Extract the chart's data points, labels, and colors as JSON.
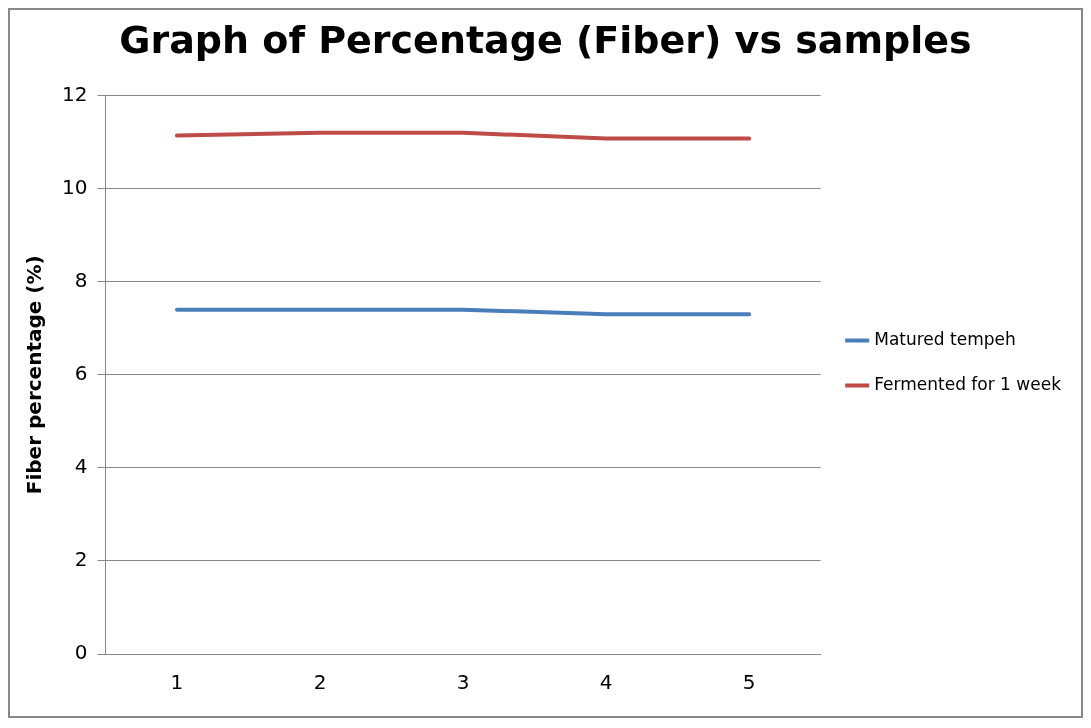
{
  "chart_data": {
    "type": "line",
    "title": "Graph of Percentage (Fiber) vs samples",
    "ylabel": "Fiber percentage (%)",
    "categories": [
      "1",
      "2",
      "3",
      "4",
      "5"
    ],
    "series": [
      {
        "name": "Matured tempeh",
        "color": "#4a7ebb",
        "values": [
          7.4,
          7.4,
          7.4,
          7.3,
          7.3
        ]
      },
      {
        "name": "Fermented for 1 week",
        "color": "#be4b48",
        "values": [
          11.14,
          11.2,
          11.2,
          11.08,
          11.08
        ]
      }
    ],
    "ylim": [
      0,
      12
    ],
    "yticks": [
      0,
      2,
      4,
      6,
      8,
      10,
      12
    ],
    "grid": "y",
    "legend": "right",
    "marker": "none",
    "line_style": "solid"
  }
}
